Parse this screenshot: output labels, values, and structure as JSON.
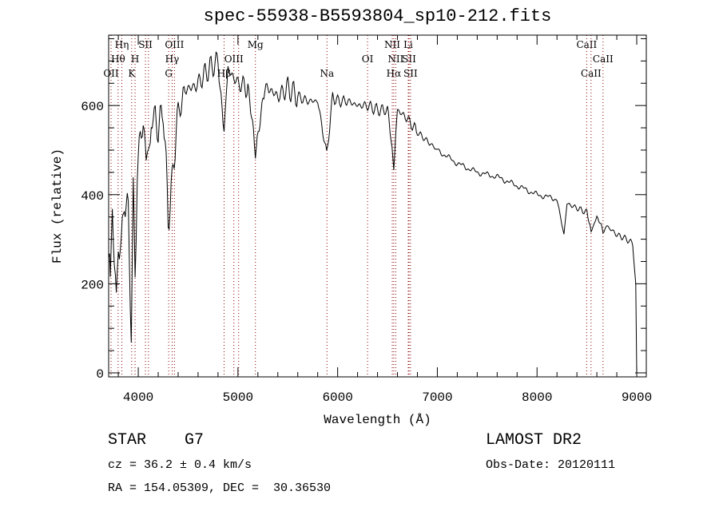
{
  "chart_data": {
    "type": "line",
    "title": "spec-55938-B5593804_sp10-212.fits",
    "xlabel": "Wavelength (Å)",
    "ylabel": "Flux (relative)",
    "xlim": [
      3703,
      9096
    ],
    "ylim": [
      -9,
      758
    ],
    "xticks": [
      4000,
      5000,
      6000,
      7000,
      8000,
      9000
    ],
    "yticks": [
      0,
      200,
      400,
      600
    ],
    "grid": false,
    "series": [
      {
        "name": "spectrum",
        "x": [
          3705,
          3720,
          3740,
          3760,
          3780,
          3800,
          3830,
          3860,
          3900,
          3930,
          3950,
          3968,
          3990,
          4020,
          4050,
          4080,
          4102,
          4130,
          4170,
          4200,
          4250,
          4300,
          4340,
          4380,
          4420,
          4480,
          4550,
          4600,
          4700,
          4800,
          4861,
          4900,
          5000,
          5100,
          5175,
          5250,
          5300,
          5400,
          5500,
          5600,
          5700,
          5800,
          5890,
          5950,
          6000,
          6100,
          6200,
          6300,
          6400,
          6500,
          6563,
          6600,
          6700,
          6800,
          6900,
          7000,
          7200,
          7400,
          7600,
          7800,
          8000,
          8200,
          8270,
          8300,
          8400,
          8500,
          8542,
          8600,
          8662,
          8700,
          8800,
          8900,
          8960,
          8990,
          9000
        ],
        "y": [
          300,
          200,
          380,
          250,
          150,
          300,
          270,
          400,
          350,
          100,
          400,
          200,
          450,
          530,
          560,
          480,
          470,
          560,
          580,
          540,
          600,
          350,
          420,
          550,
          600,
          640,
          640,
          650,
          680,
          700,
          540,
          680,
          650,
          640,
          480,
          630,
          640,
          620,
          640,
          620,
          610,
          610,
          490,
          620,
          610,
          610,
          600,
          600,
          590,
          590,
          460,
          590,
          570,
          540,
          520,
          500,
          470,
          450,
          440,
          420,
          400,
          390,
          310,
          380,
          370,
          360,
          320,
          350,
          320,
          330,
          310,
          300,
          290,
          200,
          0
        ]
      }
    ],
    "lines": [
      {
        "label": "OII",
        "w": 3727,
        "row": 3
      },
      {
        "label": "Hθ",
        "w": 3798,
        "row": 2
      },
      {
        "label": "Hη",
        "w": 3835,
        "row": 1
      },
      {
        "label": "K",
        "w": 3934,
        "row": 3
      },
      {
        "label": "H",
        "w": 3968,
        "row": 2
      },
      {
        "label": "SII",
        "w": 4072,
        "row": 1
      },
      {
        "label": "",
        "w": 4102,
        "row": 0
      },
      {
        "label": "G",
        "w": 4305,
        "row": 3
      },
      {
        "label": "Hγ",
        "w": 4340,
        "row": 2
      },
      {
        "label": "OIII",
        "w": 4363,
        "row": 1
      },
      {
        "label": "Hβ",
        "w": 4861,
        "row": 3
      },
      {
        "label": "OIII",
        "w": 4959,
        "row": 2
      },
      {
        "label": "",
        "w": 5007,
        "row": 0
      },
      {
        "label": "Mg",
        "w": 5175,
        "row": 1
      },
      {
        "label": "Na",
        "w": 5893,
        "row": 3
      },
      {
        "label": "OI",
        "w": 6300,
        "row": 2
      },
      {
        "label": "NII",
        "w": 6548,
        "row": 1
      },
      {
        "label": "Hα",
        "w": 6563,
        "row": 3
      },
      {
        "label": "NII",
        "w": 6583,
        "row": 2
      },
      {
        "label": "Li",
        "w": 6708,
        "row": 1
      },
      {
        "label": "SII",
        "w": 6716,
        "row": 2
      },
      {
        "label": "SII",
        "w": 6731,
        "row": 3
      },
      {
        "label": "CaII",
        "w": 8498,
        "row": 1
      },
      {
        "label": "CaII",
        "w": 8542,
        "row": 3
      },
      {
        "label": "CaII",
        "w": 8662,
        "row": 2
      }
    ],
    "colors": {
      "line_marker": "#8b0000",
      "spectrum": "#000000"
    }
  },
  "info": {
    "class": "STAR    G7",
    "cz": "cz = 36.2 ± 0.4 km/s",
    "coords": "RA = 154.05309, DEC =  30.36530",
    "survey": "LAMOST DR2",
    "obs_date": "Obs-Date: 20120111"
  }
}
